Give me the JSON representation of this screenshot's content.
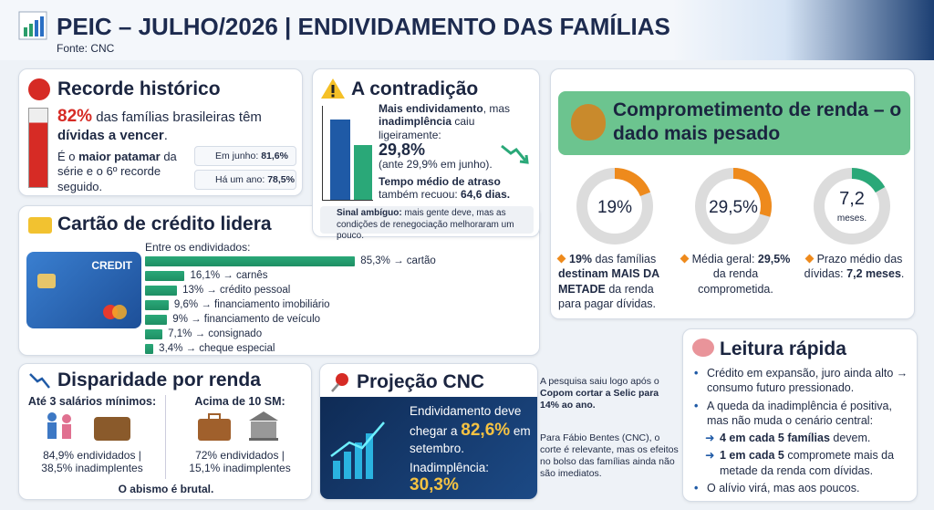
{
  "header": {
    "title": "PEIC – JULHO/2026 | ENDIVIDAMENTO DAS FAMÍLIAS",
    "source": "Fonte: CNC"
  },
  "record": {
    "title": "Recorde histórico",
    "text": [
      {
        "text": "82%",
        "b": true,
        "color": "#d62b25",
        "big": true
      },
      {
        "text": " das famílias brasileiras têm "
      },
      {
        "text": "dívidas a vencer",
        "b": true
      },
      {
        "text": "."
      }
    ],
    "note": [
      {
        "text": "É o "
      },
      {
        "text": "maior patamar",
        "b": true
      },
      {
        "text": " da série e o 6º recorde seguido."
      }
    ],
    "stats": [
      [
        {
          "text": "Em junho: "
        },
        {
          "text": "81,6%",
          "b": true
        }
      ],
      [
        {
          "text": "Há um ano: "
        },
        {
          "text": "78,5%",
          "b": true
        }
      ]
    ]
  },
  "contradiction": {
    "title": "A contradição",
    "p1": [
      {
        "text": "Mais endividamento",
        "b": true
      },
      {
        "text": ", mas "
      },
      {
        "text": "inadimplência",
        "b": true
      },
      {
        "text": " caiu ligeiramente:"
      }
    ],
    "value": "29,8%",
    "prev": "(ante 29,9% em junho).",
    "p2": [
      {
        "text": "Tempo médio de atraso",
        "b": true
      },
      {
        "text": " também recuou: "
      },
      {
        "text": "64,6 dias.",
        "b": true
      }
    ],
    "note": [
      {
        "text": "Sinal ambíguo:",
        "b": true
      },
      {
        "text": " mais gente deve, mas as condições de renegociação melhoraram um pouco."
      }
    ]
  },
  "credit": {
    "title": "Cartão de crédito lidera",
    "card_label": "CREDIT",
    "intro": "Entre os endividados:",
    "items": [
      {
        "value": 85.3,
        "label": "85,3% → cartão"
      },
      {
        "value": 16.1,
        "label": "16,1% → carnês"
      },
      {
        "value": 13,
        "label": "13% → crédito pessoal"
      },
      {
        "value": 9.6,
        "label": "9,6% → financiamento imobiliário"
      },
      {
        "value": 9,
        "label": "9% → financiamento de veículo"
      },
      {
        "value": 7.1,
        "label": "7,1% → consignado"
      },
      {
        "value": 3.4,
        "label": "3,4% → cheque especial"
      }
    ]
  },
  "commitment": {
    "title": "Comprometimento de renda – o dado mais pesado",
    "donuts": [
      {
        "value": 19,
        "label": "19%"
      },
      {
        "value": 29.5,
        "label": "29,5%"
      }
    ],
    "term": {
      "value": "7,2",
      "unit": "meses."
    },
    "captions": [
      [
        {
          "text": "19%",
          "b": true
        },
        {
          "text": " das famílias "
        },
        {
          "text": "destinam MAIS DA METADE",
          "b": true
        },
        {
          "text": " da renda para pagar dívidas."
        }
      ],
      [
        {
          "text": "Média geral: "
        },
        {
          "text": "29,5%",
          "b": true
        },
        {
          "text": " da renda comprometida."
        }
      ],
      [
        {
          "text": "Prazo médio das dívidas: "
        },
        {
          "text": "7,2 meses",
          "b": true
        },
        {
          "text": "."
        }
      ]
    ]
  },
  "income": {
    "title": "Disparidade por renda",
    "groups": [
      {
        "title": "Até 3 salários mínimos:",
        "line1": "84,9% endividados |",
        "line2": "38,5% inadimplentes"
      },
      {
        "title": "Acima de 10 SM:",
        "line1": "72% endividados |",
        "line2": "15,1% inadimplentes"
      }
    ],
    "conclusion": "O abismo é brutal."
  },
  "projection": {
    "title": "Projeção CNC",
    "box": [
      {
        "text": "Endividamento deve chegar a "
      },
      {
        "text": "82,6%",
        "b": true,
        "color": "#f5c242",
        "big": true
      },
      {
        "text": " em setembro."
      }
    ],
    "default_label": "Inadimplência:",
    "default_value": "30,3%",
    "side1": [
      {
        "text": "A pesquisa saiu logo após o "
      },
      {
        "text": "Copom cortar a Selic para 14% ao ano.",
        "b": true
      }
    ],
    "side2": "Para Fábio Bentes (CNC), o corte é relevante, mas os efeitos no bolso das famílias ainda não são imediatos."
  },
  "reading": {
    "title": "Leitura rápida",
    "items": [
      {
        "kind": "bullet",
        "text": [
          {
            "text": "Crédito em expansão, juro ainda alto → consumo futuro pressionado."
          }
        ]
      },
      {
        "kind": "bullet",
        "text": [
          {
            "text": "A queda da inadimplência é positiva, mas não muda o cenário central:"
          }
        ]
      },
      {
        "kind": "arrow",
        "text": [
          {
            "text": "4 em cada 5 famílias",
            "b": true
          },
          {
            "text": " devem."
          }
        ]
      },
      {
        "kind": "arrow",
        "text": [
          {
            "text": "1 em cada 5",
            "b": true
          },
          {
            "text": " compromete mais da metade da renda com dívidas."
          }
        ]
      },
      {
        "kind": "bullet",
        "text": [
          {
            "text": "O alívio virá, mas aos poucos."
          }
        ]
      }
    ]
  }
}
